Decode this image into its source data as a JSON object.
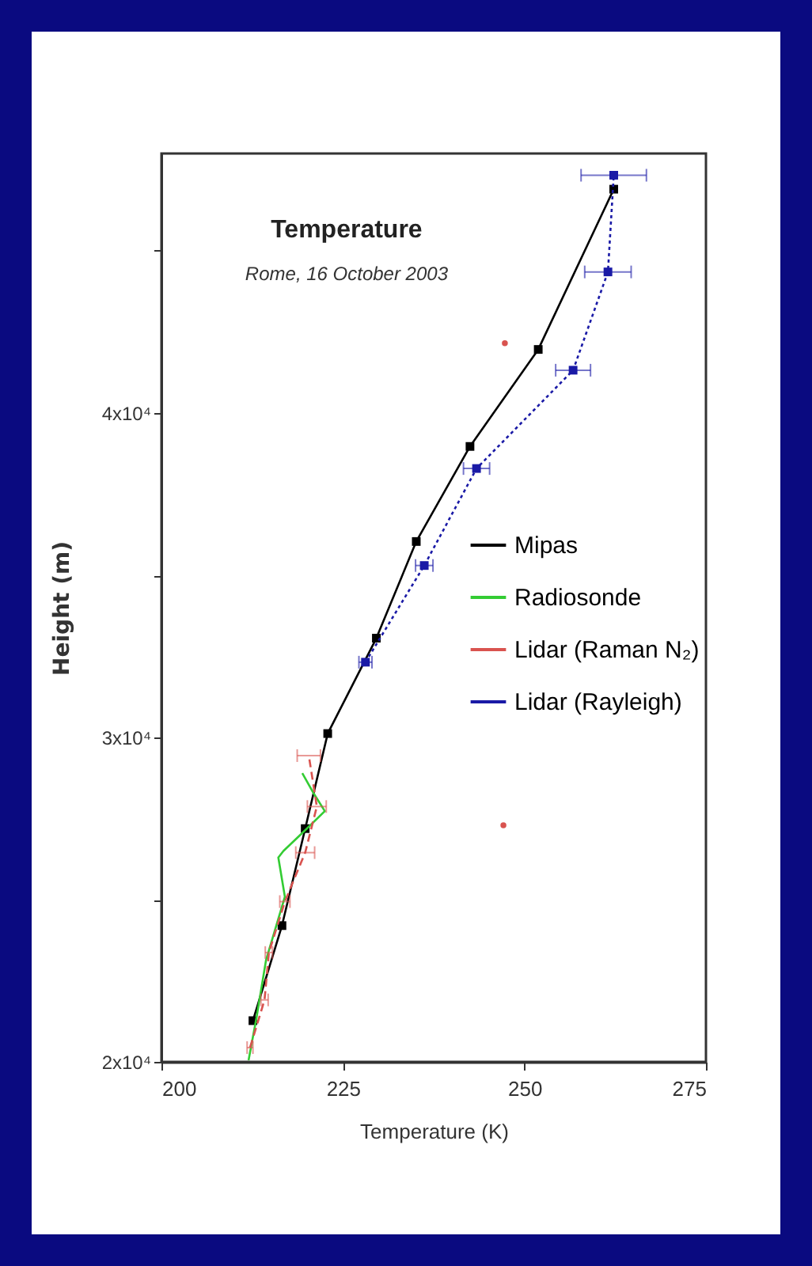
{
  "chart_data": {
    "type": "line",
    "title": "Temperature",
    "subtitle": "Rome, 16 October 2003",
    "xlabel": "Temperature (K)",
    "ylabel": "Height (m)",
    "xlim": [
      200,
      275
    ],
    "xticks": [
      200,
      225,
      250,
      275
    ],
    "ylim": [
      20000,
      48000
    ],
    "yticks": [
      {
        "value": 20000,
        "label": "2x10⁴"
      },
      {
        "value": 25000,
        "label": null
      },
      {
        "value": 30000,
        "label": "3x10⁴"
      },
      {
        "value": 35000,
        "label": null
      },
      {
        "value": 40000,
        "label": "4x10⁴"
      },
      {
        "value": 45000,
        "label": null
      }
    ],
    "grid": false,
    "legend": "right",
    "series": [
      {
        "name": "Mipas",
        "type": "line",
        "color": "#000000",
        "marker": "square",
        "line_style": "solid",
        "x": [
          212.6,
          216.6,
          219.8,
          222.9,
          229.6,
          235.1,
          242.5,
          251.9,
          262.3
        ],
        "values": [
          21270,
          24200,
          27190,
          30120,
          33060,
          36040,
          38970,
          41960,
          46900
        ]
      },
      {
        "name": "Radiosonde",
        "type": "line",
        "color": "#33cc33",
        "marker": "none",
        "line_style": "solid",
        "x": [
          212.0,
          213.1,
          214.4,
          217.0,
          216.1,
          216.8,
          219.8,
          222.5,
          220.9,
          219.4
        ],
        "values": [
          20050,
          21370,
          23130,
          25090,
          26300,
          26500,
          27140,
          27730,
          28300,
          28900
        ]
      },
      {
        "name": "Lidar (Raman N₂)",
        "type": "line",
        "color": "#d9534f",
        "marker": "none",
        "line_style": "dashed",
        "x": [
          212.2,
          214.2,
          214.8,
          217.0,
          219.8,
          221.4,
          220.3
        ],
        "values": [
          20440,
          21910,
          23370,
          24940,
          26450,
          27870,
          29440
        ],
        "xerrors": [
          0.4,
          0.5,
          0.5,
          0.7,
          1.3,
          1.3,
          1.6
        ]
      },
      {
        "name": "Lidar (Rayleigh)",
        "type": "line",
        "color": "#1a1aa6",
        "marker": "square",
        "line_style": "dotted",
        "x": [
          228.1,
          236.2,
          243.4,
          256.7,
          261.5,
          262.3
        ],
        "values": [
          32320,
          35300,
          38290,
          41320,
          44350,
          47330
        ],
        "xerrors": [
          0.9,
          1.2,
          1.8,
          2.4,
          3.2,
          4.5
        ]
      },
      {
        "type": "scatter",
        "color": "#d9534f",
        "marker": "circle",
        "x": [
          247.1,
          247.3
        ],
        "values": [
          27290,
          42150
        ]
      }
    ]
  }
}
